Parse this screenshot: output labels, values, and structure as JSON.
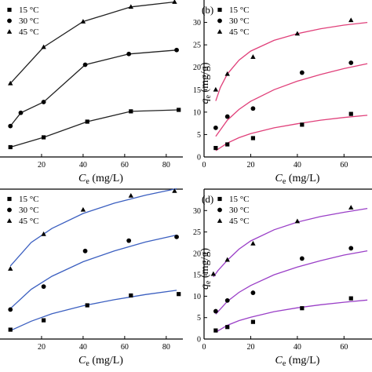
{
  "chart_data": [
    {
      "type": "line",
      "panel_label": "",
      "xlabel_symbol": "C",
      "xlabel_sub": "e",
      "xlabel_unit": " (mg/L)",
      "ylabel_symbol": "",
      "ylabel_sub": "",
      "ylabel_unit": "",
      "xlim": [
        0,
        88
      ],
      "ylim": [
        0,
        32
      ],
      "xticks": [
        20,
        40,
        60,
        80
      ],
      "yticks": [],
      "legend_position": "top-left",
      "fit_color": "#222222",
      "series": [
        {
          "name": "15 °C",
          "marker": "square",
          "x": [
            5,
            21,
            42,
            63,
            86
          ],
          "y": [
            2.0,
            4.0,
            7.2,
            9.3,
            9.6
          ],
          "fit_x": [
            5,
            21,
            42,
            63,
            86
          ],
          "fit_y": [
            2.0,
            4.0,
            7.2,
            9.3,
            9.6
          ]
        },
        {
          "name": "30 °C",
          "marker": "circle",
          "x": [
            5,
            10,
            21,
            41,
            62,
            85
          ],
          "y": [
            6.3,
            9.0,
            11.2,
            18.8,
            21.0,
            21.8
          ],
          "fit_x": [
            5,
            10,
            21,
            41,
            62,
            85
          ],
          "fit_y": [
            6.3,
            9.0,
            11.2,
            18.8,
            21.0,
            21.8
          ]
        },
        {
          "name": "45 °C",
          "marker": "triangle",
          "x": [
            5,
            21,
            40,
            63,
            84
          ],
          "y": [
            15.0,
            22.4,
            27.6,
            30.6,
            31.6
          ],
          "fit_x": [
            5,
            21,
            40,
            63,
            84
          ],
          "fit_y": [
            15.0,
            22.4,
            27.6,
            30.6,
            31.6
          ]
        }
      ]
    },
    {
      "type": "scatter",
      "panel_label": "(b)",
      "xlabel_symbol": "C",
      "xlabel_sub": "e",
      "xlabel_unit": " (mg/L)",
      "ylabel_symbol": "q",
      "ylabel_sub": "e",
      "ylabel_unit": " (mg/g)",
      "xlim": [
        0,
        72
      ],
      "ylim": [
        0,
        35
      ],
      "xticks": [
        0,
        20,
        40,
        60
      ],
      "yticks": [
        0,
        5,
        10,
        15,
        20,
        25,
        30
      ],
      "legend_position": "top-left",
      "fit_color": "#e0407a",
      "series": [
        {
          "name": "15 °C",
          "marker": "square",
          "x": [
            5,
            10,
            21,
            42,
            63
          ],
          "y": [
            2.0,
            2.8,
            4.2,
            7.2,
            9.6
          ],
          "fit_x": [
            5,
            10,
            15,
            20,
            30,
            40,
            50,
            60,
            70
          ],
          "fit_y": [
            1.4,
            3.1,
            4.3,
            5.2,
            6.5,
            7.4,
            8.2,
            8.8,
            9.3
          ]
        },
        {
          "name": "30 °C",
          "marker": "circle",
          "x": [
            5,
            10,
            21,
            42,
            63
          ],
          "y": [
            6.5,
            9.0,
            10.8,
            18.8,
            21.0
          ],
          "fit_x": [
            5,
            10,
            15,
            20,
            30,
            40,
            50,
            60,
            70
          ],
          "fit_y": [
            4.6,
            8.2,
            10.6,
            12.4,
            15.0,
            16.9,
            18.4,
            19.7,
            20.8
          ]
        },
        {
          "name": "45 °C",
          "marker": "triangle",
          "x": [
            5,
            10,
            21,
            40,
            63
          ],
          "y": [
            15.0,
            18.5,
            22.3,
            27.5,
            30.5
          ],
          "fit_x": [
            5,
            7,
            10,
            15,
            20,
            30,
            40,
            50,
            60,
            70
          ],
          "fit_y": [
            12.5,
            15.5,
            18.5,
            21.6,
            23.6,
            26.0,
            27.5,
            28.6,
            29.4,
            30.0
          ]
        }
      ]
    },
    {
      "type": "scatter",
      "panel_label": "",
      "xlabel_symbol": "C",
      "xlabel_sub": "e",
      "xlabel_unit": " (mg/L)",
      "ylabel_symbol": "",
      "ylabel_sub": "",
      "ylabel_unit": "",
      "xlim": [
        0,
        88
      ],
      "ylim": [
        0,
        32
      ],
      "xticks": [
        20,
        40,
        60,
        80
      ],
      "yticks": [],
      "legend_position": "top-left",
      "fit_color": "#3b5fc0",
      "series": [
        {
          "name": "15 °C",
          "marker": "square",
          "x": [
            5,
            21,
            42,
            63,
            86
          ],
          "y": [
            2.0,
            4.0,
            7.2,
            9.3,
            9.6
          ],
          "fit_x": [
            5,
            15,
            25,
            40,
            55,
            70,
            85
          ],
          "fit_y": [
            1.8,
            3.8,
            5.4,
            7.1,
            8.4,
            9.5,
            10.4
          ]
        },
        {
          "name": "30 °C",
          "marker": "circle",
          "x": [
            5,
            21,
            41,
            62,
            85
          ],
          "y": [
            6.3,
            11.2,
            18.8,
            21.0,
            21.8
          ],
          "fit_x": [
            5,
            15,
            25,
            40,
            55,
            70,
            85
          ],
          "fit_y": [
            6.5,
            10.6,
            13.4,
            16.5,
            18.8,
            20.7,
            22.2
          ]
        },
        {
          "name": "45 °C",
          "marker": "triangle",
          "x": [
            5,
            21,
            40,
            63,
            84
          ],
          "y": [
            15.0,
            22.4,
            27.6,
            30.6,
            31.6
          ],
          "fit_x": [
            5,
            15,
            25,
            40,
            55,
            70,
            85
          ],
          "fit_y": [
            15.6,
            20.6,
            23.6,
            26.8,
            29.0,
            30.7,
            32.1
          ]
        }
      ]
    },
    {
      "type": "scatter",
      "panel_label": "(d)",
      "xlabel_symbol": "C",
      "xlabel_sub": "e",
      "xlabel_unit": " (mg/L)",
      "ylabel_symbol": "q",
      "ylabel_sub": "e",
      "ylabel_unit": " (mg/g)",
      "xlim": [
        0,
        72
      ],
      "ylim": [
        0,
        35
      ],
      "xticks": [
        0,
        20,
        40,
        60
      ],
      "yticks": [
        0,
        5,
        10,
        15,
        20,
        25,
        30
      ],
      "legend_position": "top-left",
      "fit_color": "#9a3fc7",
      "series": [
        {
          "name": "15 °C",
          "marker": "square",
          "x": [
            5,
            10,
            21,
            42,
            63
          ],
          "y": [
            2.0,
            2.8,
            4.0,
            7.2,
            9.5
          ],
          "fit_x": [
            5,
            10,
            15,
            20,
            30,
            40,
            50,
            60,
            70
          ],
          "fit_y": [
            1.6,
            3.2,
            4.3,
            5.1,
            6.4,
            7.3,
            8.0,
            8.6,
            9.1
          ]
        },
        {
          "name": "30 °C",
          "marker": "circle",
          "x": [
            5,
            10,
            21,
            42,
            63
          ],
          "y": [
            6.5,
            9.0,
            10.8,
            18.8,
            21.2
          ],
          "fit_x": [
            5,
            10,
            15,
            20,
            30,
            40,
            50,
            60,
            70
          ],
          "fit_y": [
            5.8,
            8.8,
            10.9,
            12.5,
            15.0,
            16.8,
            18.3,
            19.6,
            20.6
          ]
        },
        {
          "name": "45 °C",
          "marker": "triangle",
          "x": [
            4,
            10,
            21,
            40,
            63
          ],
          "y": [
            15.2,
            18.5,
            22.3,
            27.5,
            30.7
          ],
          "fit_x": [
            4,
            6,
            10,
            15,
            20,
            30,
            40,
            50,
            60,
            70
          ],
          "fit_y": [
            14.5,
            16.0,
            18.4,
            21.0,
            22.9,
            25.5,
            27.3,
            28.6,
            29.6,
            30.5
          ]
        }
      ]
    }
  ]
}
